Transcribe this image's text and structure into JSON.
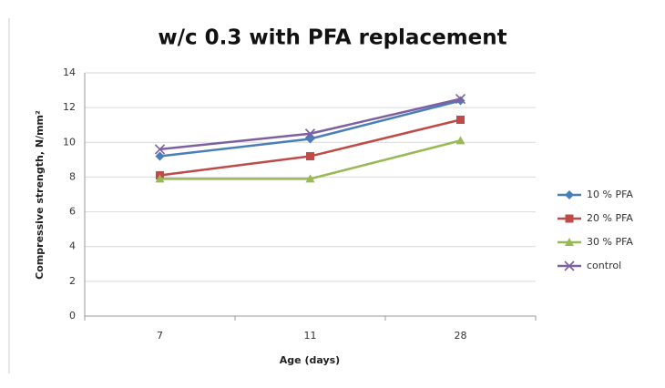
{
  "chart_data": {
    "type": "line",
    "title": "w/c 0.3 with PFA replacement",
    "x_label": "Age (days)",
    "y_label": "Compressive strength, N/mm²",
    "categories": [
      "7",
      "11",
      "28"
    ],
    "series": [
      {
        "name": "10 % PFA",
        "color": "#4a7ebb",
        "marker": "diamond",
        "values": [
          9.2,
          10.2,
          12.4
        ]
      },
      {
        "name": "20 % PFA",
        "color": "#be4b48",
        "marker": "square",
        "values": [
          8.1,
          9.2,
          11.3
        ]
      },
      {
        "name": "30 % PFA",
        "color": "#98b954",
        "marker": "triangle",
        "values": [
          7.9,
          7.9,
          10.1
        ]
      },
      {
        "name": "control",
        "color": "#7d60a0",
        "marker": "x",
        "values": [
          9.6,
          10.5,
          12.5
        ]
      }
    ],
    "ylim": [
      0,
      14
    ],
    "yticks": [
      0,
      2,
      4,
      6,
      8,
      10,
      12,
      14
    ],
    "grid": true,
    "legend": "right"
  }
}
